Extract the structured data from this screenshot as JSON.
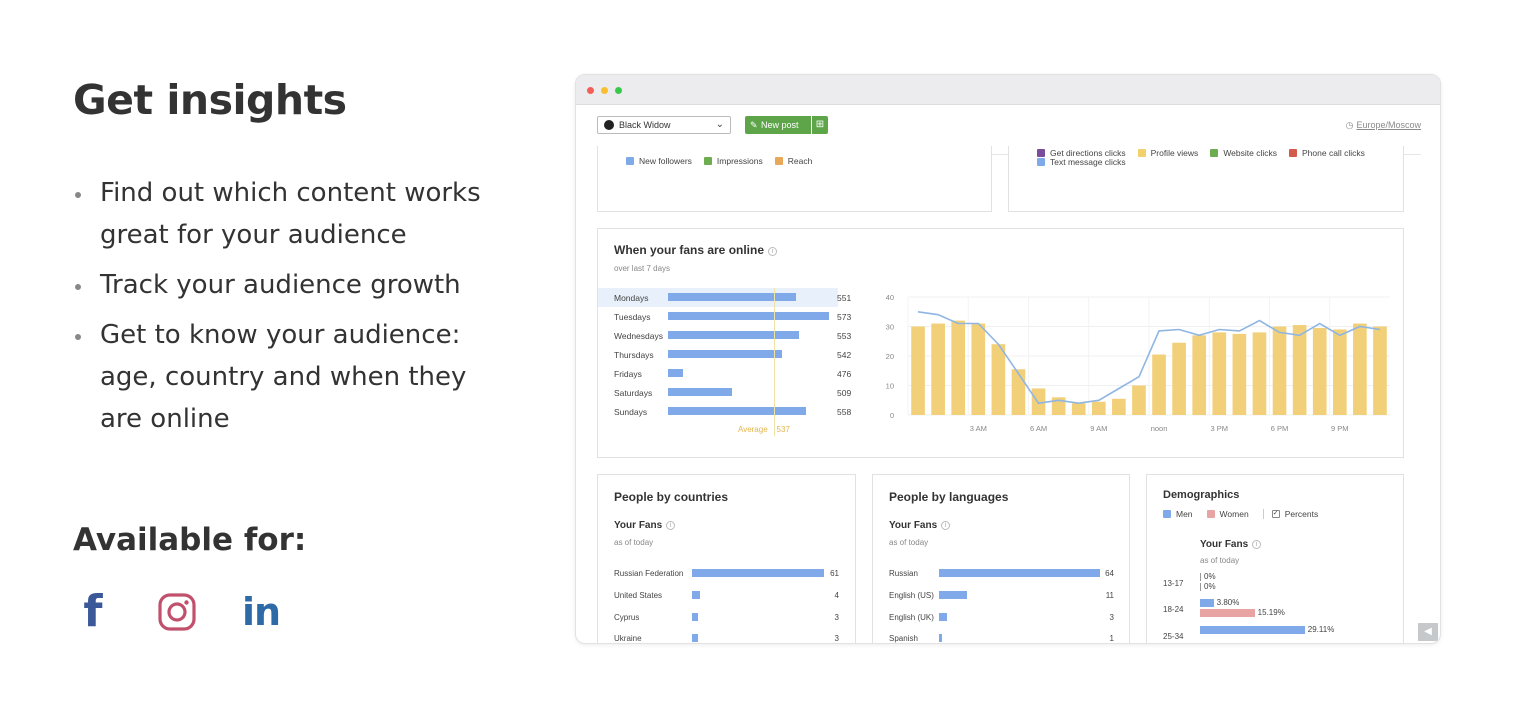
{
  "marketing": {
    "heading": "Get insights",
    "bullets": [
      "Find out which content works great for your audience",
      "Track your audience growth",
      "Get to know your audience: age, country and when they are online"
    ],
    "available_label": "Available for:",
    "socials": [
      {
        "name": "facebook",
        "glyph": "f",
        "color": "#3b5998"
      },
      {
        "name": "instagram",
        "color": "#c0506b"
      },
      {
        "name": "linkedin",
        "glyph": "in",
        "color": "#2f6aa8"
      }
    ]
  },
  "app": {
    "toolbar": {
      "account": "Black Widow",
      "new_post": "New post",
      "timezone": "Europe/Moscow"
    },
    "top_left_legend": [
      {
        "label": "New followers",
        "color": "#7fa9e8"
      },
      {
        "label": "Impressions",
        "color": "#6dac4f"
      },
      {
        "label": "Reach",
        "color": "#e8a85a"
      }
    ],
    "top_right_legend": [
      {
        "label": "Get directions clicks",
        "color": "#7a4d9c"
      },
      {
        "label": "Profile views",
        "color": "#f2d06b"
      },
      {
        "label": "Website clicks",
        "color": "#6dac4f"
      },
      {
        "label": "Phone call clicks",
        "color": "#d45a4b"
      },
      {
        "label": "Text message clicks",
        "color": "#7fa9e8"
      }
    ],
    "fans_online": {
      "title": "When your fans are online",
      "subtitle": "over last 7 days",
      "average_label": "Average",
      "average_value": "537",
      "days": [
        {
          "name": "Mondays",
          "value": "551"
        },
        {
          "name": "Tuesdays",
          "value": "573"
        },
        {
          "name": "Wednesdays",
          "value": "553"
        },
        {
          "name": "Thursdays",
          "value": "542"
        },
        {
          "name": "Fridays",
          "value": "476"
        },
        {
          "name": "Saturdays",
          "value": "509"
        },
        {
          "name": "Sundays",
          "value": "558"
        }
      ]
    },
    "countries": {
      "title": "People by countries",
      "fans_label": "Your Fans",
      "as_of": "as of today",
      "rows": [
        {
          "name": "Russian Federation",
          "value": "61"
        },
        {
          "name": "United States",
          "value": "4"
        },
        {
          "name": "Cyprus",
          "value": "3"
        },
        {
          "name": "Ukraine",
          "value": "3"
        }
      ]
    },
    "languages": {
      "title": "People by languages",
      "fans_label": "Your Fans",
      "as_of": "as of today",
      "rows": [
        {
          "name": "Russian",
          "value": "64"
        },
        {
          "name": "English (US)",
          "value": "11"
        },
        {
          "name": "English (UK)",
          "value": "3"
        },
        {
          "name": "Spanish",
          "value": "1"
        }
      ]
    },
    "demographics": {
      "title": "Demographics",
      "legend": {
        "men": "Men",
        "women": "Women",
        "percents": "Percents"
      },
      "fans_label": "Your Fans",
      "as_of": "as of today",
      "rows": [
        {
          "age": "13-17",
          "men": "0%",
          "women": "0%",
          "men_pct": 0,
          "women_pct": 0
        },
        {
          "age": "18-24",
          "men": "3.80%",
          "women": "15.19%",
          "men_pct": 3.8,
          "women_pct": 15.19
        },
        {
          "age": "25-34",
          "men": "29.11%",
          "women": "",
          "men_pct": 29.11,
          "women_pct": 0
        }
      ]
    }
  },
  "chart_data": {
    "type": "bar",
    "x": [
      "12 AM",
      "1 AM",
      "2 AM",
      "3 AM",
      "4 AM",
      "5 AM",
      "6 AM",
      "7 AM",
      "8 AM",
      "9 AM",
      "10 AM",
      "11 AM",
      "noon",
      "1 PM",
      "2 PM",
      "3 PM",
      "4 PM",
      "5 PM",
      "6 PM",
      "7 PM",
      "8 PM",
      "9 PM",
      "10 PM",
      "11 PM"
    ],
    "tick_labels": [
      "3 AM",
      "6 AM",
      "9 AM",
      "noon",
      "3 PM",
      "6 PM",
      "9 PM"
    ],
    "y_ticks": [
      "0",
      "10",
      "20",
      "30",
      "40"
    ],
    "ylim": [
      0,
      40
    ],
    "series": [
      {
        "type": "bar",
        "color": "#f2d079",
        "values": [
          30,
          31,
          32,
          31,
          24,
          15.5,
          9,
          6,
          4,
          4.5,
          5.5,
          10,
          20.5,
          24.5,
          27,
          28,
          27.5,
          28,
          30,
          30.5,
          29.5,
          29,
          31,
          30
        ]
      },
      {
        "type": "line",
        "color": "#8fb6e3",
        "values": [
          35,
          34,
          31,
          31,
          24,
          14,
          4,
          5,
          4,
          5,
          9,
          13,
          28.5,
          29,
          27,
          29,
          28.5,
          32,
          28,
          27,
          31,
          27,
          30,
          29
        ]
      }
    ],
    "grid": true
  }
}
